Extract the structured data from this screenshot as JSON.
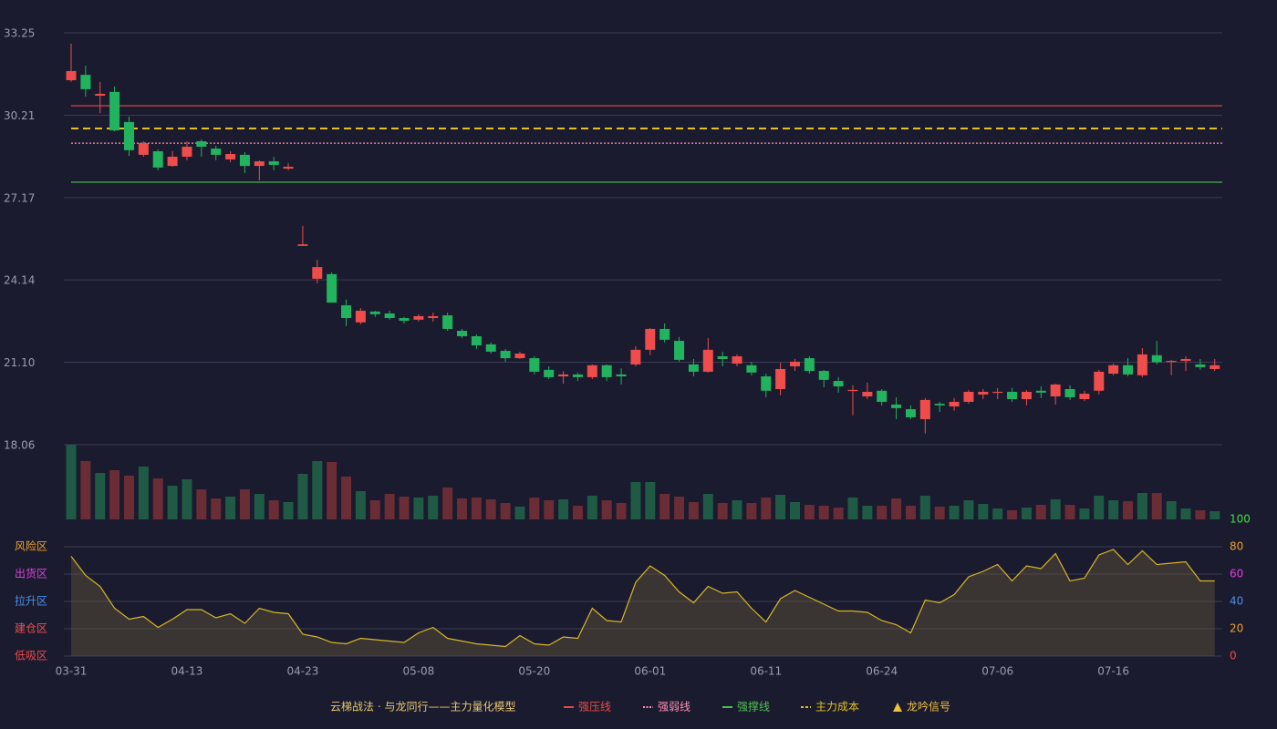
{
  "chart_data": {
    "type": "candlestick",
    "title": "云梯战法 · 与龙同行——主力量化模型",
    "categories": [
      "03-31",
      null,
      null,
      null,
      null,
      null,
      null,
      null,
      "04-13",
      null,
      null,
      null,
      null,
      null,
      null,
      null,
      "04-23",
      null,
      null,
      null,
      null,
      null,
      null,
      null,
      "05-08",
      null,
      null,
      null,
      null,
      null,
      null,
      null,
      "05-20",
      null,
      null,
      null,
      null,
      null,
      null,
      null,
      "06-01",
      null,
      null,
      null,
      null,
      null,
      null,
      null,
      "06-11",
      null,
      null,
      null,
      null,
      null,
      null,
      null,
      "06-24",
      null,
      null,
      null,
      null,
      null,
      null,
      null,
      "07-06",
      null,
      null,
      null,
      null,
      null,
      null,
      null,
      "07-16",
      null,
      null,
      null,
      null,
      null,
      null,
      null
    ],
    "open": [
      31.5,
      31.7,
      30.93,
      31.07,
      29.96,
      28.75,
      28.88,
      28.34,
      28.68,
      29.25,
      28.98,
      28.58,
      28.75,
      28.34,
      28.51,
      28.24,
      25.39,
      24.18,
      24.35,
      23.2,
      22.57,
      22.97,
      22.9,
      22.73,
      22.67,
      22.73,
      22.83,
      22.26,
      22.06,
      21.76,
      21.52,
      21.25,
      21.25,
      20.82,
      20.58,
      20.65,
      20.55,
      20.99,
      20.65,
      21.02,
      21.56,
      22.33,
      21.89,
      21.02,
      20.75,
      21.32,
      21.05,
      20.99,
      20.58,
      20.11,
      20.95,
      21.25,
      20.78,
      20.41,
      20.05,
      19.84,
      20.05,
      19.54,
      19.37,
      19.0,
      19.57,
      19.47,
      19.64,
      19.91,
      19.98,
      20.01,
      19.74,
      20.05,
      19.84,
      20.11,
      19.74,
      20.05,
      20.68,
      20.99,
      20.62,
      21.36,
      21.12,
      21.15,
      21.02,
      20.85
    ],
    "close": [
      31.84,
      31.17,
      31.0,
      29.65,
      28.92,
      29.18,
      28.28,
      28.68,
      29.05,
      29.05,
      28.75,
      28.78,
      28.34,
      28.51,
      28.38,
      28.31,
      25.45,
      24.61,
      23.3,
      22.73,
      23.0,
      22.87,
      22.73,
      22.63,
      22.8,
      22.8,
      22.33,
      22.06,
      21.72,
      21.49,
      21.25,
      21.42,
      20.75,
      20.55,
      20.65,
      20.55,
      20.99,
      20.55,
      20.58,
      21.56,
      22.33,
      21.93,
      21.19,
      20.75,
      21.56,
      21.22,
      21.32,
      20.72,
      20.05,
      20.85,
      21.12,
      20.78,
      20.45,
      20.21,
      20.08,
      20.01,
      19.64,
      19.41,
      19.07,
      19.71,
      19.51,
      19.64,
      20.01,
      20.01,
      20.01,
      19.74,
      20.01,
      19.98,
      20.28,
      19.81,
      19.94,
      20.75,
      20.99,
      20.65,
      21.39,
      21.1,
      21.15,
      21.22,
      20.92,
      20.99
    ],
    "high": [
      32.85,
      32.04,
      31.44,
      31.27,
      30.16,
      29.25,
      28.95,
      28.88,
      29.25,
      29.32,
      29.08,
      28.88,
      28.85,
      28.55,
      28.68,
      28.45,
      26.13,
      24.88,
      24.41,
      23.41,
      23.1,
      23.0,
      23.0,
      22.77,
      22.87,
      22.93,
      22.93,
      22.33,
      22.13,
      21.83,
      21.59,
      21.49,
      21.32,
      20.95,
      20.78,
      20.72,
      21.02,
      21.02,
      20.88,
      21.69,
      22.36,
      22.53,
      22.03,
      21.22,
      21.99,
      21.49,
      21.39,
      21.12,
      20.68,
      21.09,
      21.22,
      21.32,
      20.82,
      20.55,
      20.25,
      20.35,
      20.11,
      19.81,
      19.51,
      19.78,
      19.64,
      19.78,
      20.08,
      20.11,
      20.15,
      20.15,
      20.08,
      20.21,
      20.31,
      20.25,
      20.05,
      20.82,
      21.05,
      21.25,
      21.62,
      21.89,
      21.19,
      21.32,
      21.22,
      21.22
    ],
    "low": [
      31.44,
      30.9,
      30.29,
      29.62,
      28.71,
      28.68,
      28.18,
      28.31,
      28.55,
      28.68,
      28.55,
      28.48,
      28.08,
      27.81,
      28.18,
      28.18,
      25.39,
      24.01,
      23.3,
      22.43,
      22.5,
      22.77,
      22.67,
      22.53,
      22.6,
      22.6,
      22.26,
      21.99,
      21.59,
      21.42,
      21.12,
      21.22,
      20.65,
      20.48,
      20.31,
      20.41,
      20.48,
      20.41,
      20.28,
      20.95,
      21.36,
      21.83,
      21.12,
      20.58,
      20.72,
      20.95,
      20.95,
      20.62,
      19.81,
      19.88,
      20.78,
      20.68,
      20.18,
      19.98,
      19.14,
      19.74,
      19.51,
      19.0,
      19.0,
      18.47,
      19.27,
      19.31,
      19.57,
      19.74,
      19.74,
      19.64,
      19.51,
      19.78,
      19.54,
      19.71,
      19.67,
      19.91,
      20.62,
      20.58,
      20.55,
      21.02,
      20.62,
      20.78,
      20.82,
      20.78
    ],
    "up_color": "#ef4c4c",
    "down_color": "#22b35e",
    "ylim": [
      18.06,
      33.25
    ],
    "yticks": [
      33.25,
      30.21,
      27.17,
      24.14,
      {
        "value": 21.1,
        "label": "21.10"
      },
      18.06
    ],
    "lines": [
      {
        "name": "强压线",
        "value": 30.56,
        "color": "#e84a4a",
        "style": "solid"
      },
      {
        "name": "强弱线",
        "value": 29.18,
        "color": "#ff8fb0",
        "style": "dotted"
      },
      {
        "name": "强撑线",
        "value": 27.74,
        "color": "#4ec24e",
        "style": "solid"
      },
      {
        "name": "主力成本",
        "value": 29.72,
        "color": "#e6c020",
        "style": "dashed"
      }
    ],
    "signal": {
      "name": "龙吟信号",
      "color": "#f0c040"
    },
    "volume": {
      "values": [
        82,
        64,
        51,
        54,
        48,
        58,
        45,
        37,
        44,
        33,
        23,
        25,
        33,
        28,
        21,
        19,
        50,
        64,
        63,
        47,
        31,
        21,
        28,
        25,
        24,
        26,
        35,
        23,
        24,
        22,
        18,
        14,
        24,
        21,
        22,
        15,
        26,
        21,
        18,
        41,
        41,
        28,
        25,
        19,
        28,
        18,
        21,
        18,
        24,
        27,
        19,
        16,
        15,
        13,
        24,
        15,
        15,
        23,
        15,
        26,
        14,
        15,
        21,
        17,
        12,
        10,
        13,
        16,
        22,
        16,
        12,
        26,
        21,
        20,
        29,
        29,
        20,
        12,
        10,
        9
      ],
      "colors": [
        "#1f5a45",
        "#6a2c35",
        "#1f5a45",
        "#6a2c35",
        "#6a2c35",
        "#1f5a45",
        "#6a2c35",
        "#1f5a45",
        "#1f5a45",
        "#6a2c35",
        "#6a2c35",
        "#1f5a45",
        "#6a2c35",
        "#1f5a45",
        "#6a2c35",
        "#1f5a45",
        "#1f5a45",
        "#1f5a45",
        "#6a2c35",
        "#6a2c35",
        "#1f5a45",
        "#6a2c35",
        "#6a2c35",
        "#6a2c35",
        "#1f5a45",
        "#1f5a45",
        "#6a2c35",
        "#6a2c35",
        "#6a2c35",
        "#6a2c35",
        "#6a2c35",
        "#1f5a45",
        "#6a2c35",
        "#6a2c35",
        "#1f5a45",
        "#6a2c35",
        "#1f5a45",
        "#6a2c35",
        "#6a2c35",
        "#1f5a45",
        "#1f5a45",
        "#6a2c35",
        "#6a2c35",
        "#6a2c35",
        "#1f5a45",
        "#6a2c35",
        "#1f5a45",
        "#6a2c35",
        "#6a2c35",
        "#1f5a45",
        "#1f5a45",
        "#6a2c35",
        "#6a2c35",
        "#6a2c35",
        "#1f5a45",
        "#1f5a45",
        "#6a2c35",
        "#6a2c35",
        "#6a2c35",
        "#1f5a45",
        "#6a2c35",
        "#1f5a45",
        "#1f5a45",
        "#1f5a45",
        "#1f5a45",
        "#6a2c35",
        "#1f5a45",
        "#6a2c35",
        "#1f5a45",
        "#6a2c35",
        "#1f5a45",
        "#1f5a45",
        "#1f5a45",
        "#6a2c35",
        "#1f5a45",
        "#6a2c35",
        "#1f5a45",
        "#1f5a45",
        "#6a2c35",
        "#1f5a45"
      ],
      "ylim": [
        0,
        82
      ]
    },
    "indicator": {
      "values": [
        73,
        59,
        51,
        35,
        27,
        29,
        21,
        27,
        34,
        34,
        28,
        31,
        24,
        35,
        32,
        31,
        16,
        14,
        10,
        9,
        13,
        12,
        11,
        10,
        17,
        21,
        13,
        11,
        9,
        8,
        7,
        15,
        9,
        8,
        14,
        13,
        35,
        26,
        25,
        54,
        66,
        59,
        47,
        39,
        51,
        46,
        47,
        35,
        25,
        42,
        48,
        43,
        38,
        33,
        33,
        32,
        26,
        23,
        17,
        41,
        39,
        45,
        58,
        62,
        67,
        55,
        66,
        64,
        75,
        55,
        57,
        74,
        78,
        67,
        77,
        67,
        68,
        69,
        55,
        55
      ],
      "color": "#d8b628",
      "ylim": [
        0,
        100
      ],
      "yticks": [
        0,
        20,
        40,
        60,
        80,
        100
      ],
      "ytick_colors": [
        "#f04848",
        "#f0a030",
        "#4a90e8",
        "#e040e0",
        "#f0a030",
        "#40e040"
      ],
      "zones": [
        {
          "label": "低吸区",
          "color": "#f04848"
        },
        {
          "label": "建仓区",
          "color": "#f05050"
        },
        {
          "label": "拉升区",
          "color": "#4a90e8"
        },
        {
          "label": "出货区",
          "color": "#e040e0"
        },
        {
          "label": "风险区",
          "color": "#f0a030"
        }
      ]
    }
  }
}
